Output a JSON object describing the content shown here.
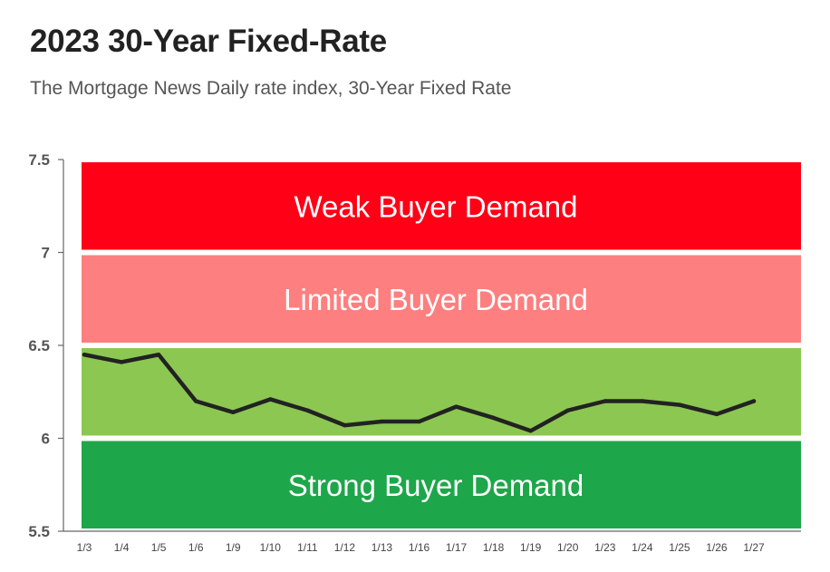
{
  "title": "2023 30-Year Fixed-Rate",
  "subtitle": "The Mortgage News Daily rate index, 30-Year Fixed Rate",
  "chart_data": {
    "type": "line",
    "categories": [
      "1/3",
      "1/4",
      "1/5",
      "1/6",
      "1/9",
      "1/10",
      "1/11",
      "1/12",
      "1/13",
      "1/16",
      "1/17",
      "1/18",
      "1/19",
      "1/20",
      "1/23",
      "1/24",
      "1/25",
      "1/26",
      "1/27"
    ],
    "series": [
      {
        "values": [
          6.45,
          6.41,
          6.45,
          6.2,
          6.14,
          6.21,
          6.15,
          6.07,
          6.09,
          6.09,
          6.17,
          6.11,
          6.04,
          6.15,
          6.2,
          6.2,
          6.18,
          6.13,
          6.2
        ],
        "color": "#222222"
      }
    ],
    "ylim": [
      5.5,
      7.5
    ],
    "yticks": [
      "5.5",
      "6",
      "6.5",
      "7",
      "7.5"
    ],
    "ytick_values": [
      5.5,
      6,
      6.5,
      7,
      7.5
    ],
    "bands": [
      {
        "label": "Weak Buyer Demand",
        "from": 7.0,
        "to": 7.5,
        "color": "#ff0016"
      },
      {
        "label": "Limited Buyer Demand",
        "from": 6.5,
        "to": 7.0,
        "color": "#fe7f7f"
      },
      {
        "label": "",
        "from": 6.0,
        "to": 6.5,
        "color": "#8cc752"
      },
      {
        "label": "Strong Buyer Demand",
        "from": 5.5,
        "to": 6.0,
        "color": "#1ea64a"
      }
    ],
    "grid": false
  }
}
